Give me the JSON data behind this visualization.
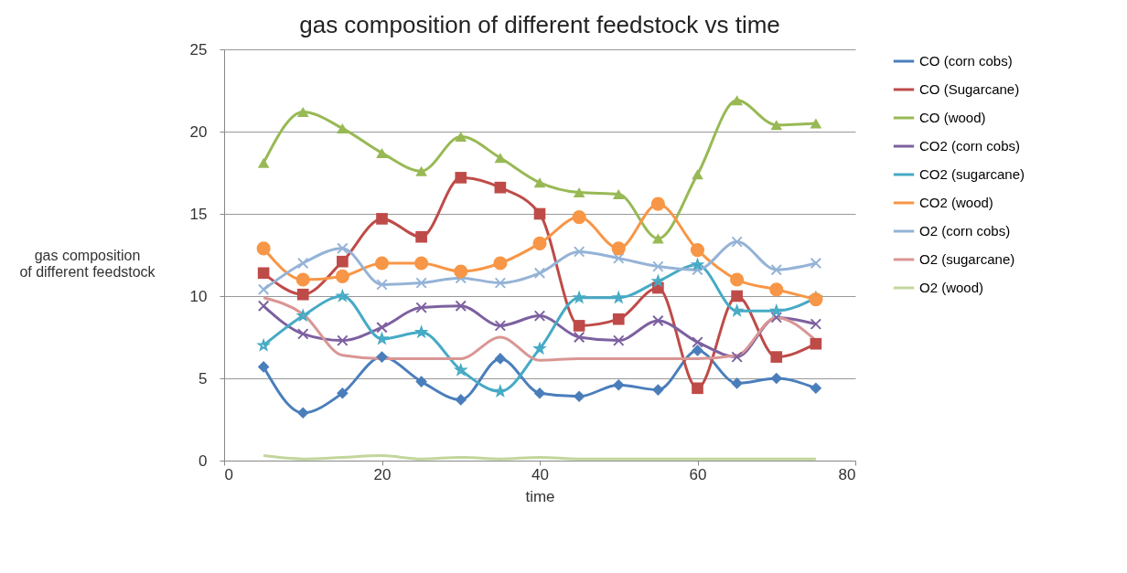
{
  "chart_data": {
    "type": "line",
    "title": "gas composition of different feedstock vs time",
    "xlabel": "time",
    "ylabel": "gas composition of different feedstock",
    "x": [
      5,
      10,
      15,
      20,
      25,
      30,
      35,
      40,
      45,
      50,
      55,
      60,
      65,
      70,
      75
    ],
    "xlim": [
      0,
      80
    ],
    "xticks": [
      0,
      20,
      40,
      60,
      80
    ],
    "ylim": [
      0,
      25
    ],
    "yticks": [
      0,
      5,
      10,
      15,
      20,
      25
    ],
    "grid": "y",
    "legend": "right",
    "line_style": "solid",
    "series": [
      {
        "name": "CO (corn cobs)",
        "color": "#4a7ebb",
        "marker": "diamond",
        "values": [
          5.7,
          2.9,
          4.1,
          6.3,
          4.8,
          3.7,
          6.2,
          4.1,
          3.9,
          4.6,
          4.3,
          6.7,
          4.7,
          5.0,
          4.4
        ]
      },
      {
        "name": "CO (Sugarcane)",
        "color": "#be4b48",
        "marker": "square",
        "values": [
          11.4,
          10.1,
          12.1,
          14.7,
          13.6,
          17.2,
          16.6,
          15.0,
          8.2,
          8.6,
          10.5,
          4.4,
          10.0,
          6.3,
          7.1
        ]
      },
      {
        "name": "CO (wood)",
        "color": "#98b954",
        "marker": "triangle",
        "values": [
          18.1,
          21.2,
          20.2,
          18.7,
          17.6,
          19.7,
          18.4,
          16.9,
          16.3,
          16.2,
          13.5,
          17.4,
          21.9,
          20.4,
          20.5
        ]
      },
      {
        "name": "CO2 (corn cobs)",
        "color": "#7d60a0",
        "marker": "cross",
        "values": [
          9.4,
          7.7,
          7.3,
          8.1,
          9.3,
          9.4,
          8.2,
          8.8,
          7.5,
          7.3,
          8.5,
          7.2,
          6.3,
          8.7,
          8.3
        ]
      },
      {
        "name": "CO2 (sugarcane)",
        "color": "#46aac5",
        "marker": "star",
        "values": [
          7.0,
          8.8,
          10.0,
          7.4,
          7.8,
          5.5,
          4.2,
          6.8,
          9.9,
          9.9,
          10.9,
          11.9,
          9.1,
          9.1,
          9.9
        ]
      },
      {
        "name": "CO2 (wood)",
        "color": "#f79646",
        "marker": "circle",
        "values": [
          12.9,
          11.0,
          11.2,
          12.0,
          12.0,
          11.5,
          12.0,
          13.2,
          14.8,
          12.9,
          15.6,
          12.8,
          11.0,
          10.4,
          9.8
        ]
      },
      {
        "name": "O2 (corn cobs)",
        "color": "#95b3d7",
        "marker": "cross",
        "values": [
          10.4,
          12.0,
          12.9,
          10.7,
          10.8,
          11.1,
          10.8,
          11.4,
          12.7,
          12.3,
          11.8,
          11.6,
          13.3,
          11.6,
          12.0
        ]
      },
      {
        "name": "O2 (sugarcane)",
        "color": "#d99694",
        "marker": "none",
        "values": [
          9.9,
          8.9,
          6.4,
          6.2,
          6.2,
          6.2,
          7.5,
          6.1,
          6.2,
          6.2,
          6.2,
          6.2,
          6.4,
          8.7,
          7.3
        ]
      },
      {
        "name": "O2 (wood)",
        "color": "#c3d69b",
        "marker": "none",
        "values": [
          0.3,
          0.1,
          0.2,
          0.3,
          0.1,
          0.2,
          0.1,
          0.2,
          0.1,
          0.1,
          0.1,
          0.1,
          0.1,
          0.1,
          0.1
        ]
      }
    ]
  }
}
